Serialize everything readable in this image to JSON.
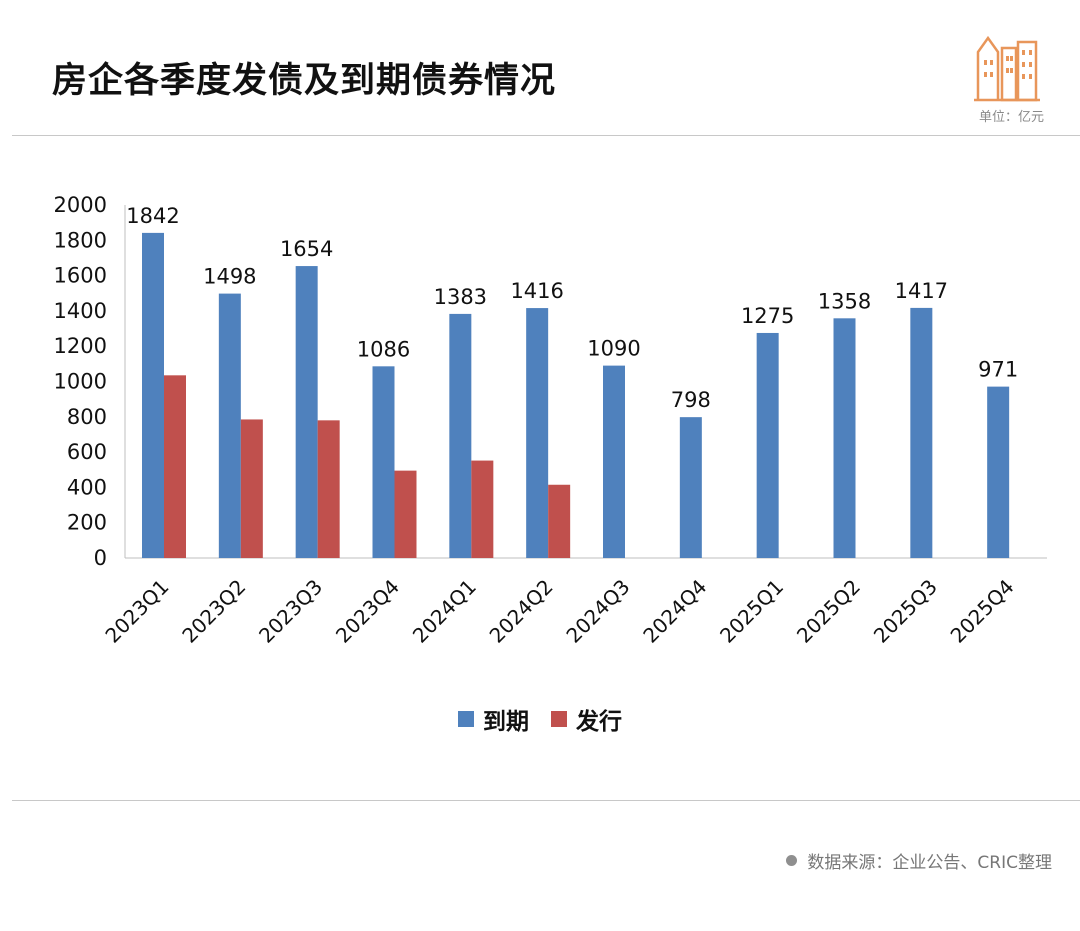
{
  "header": {
    "title": "房企各季度发债及到期债券情况",
    "unit": "单位：亿元"
  },
  "footer": {
    "source": "数据来源：企业公告、CRIC整理"
  },
  "colors": {
    "maturity": "#4f81bd",
    "issuance": "#c0504d",
    "logo": "#e8965a"
  },
  "chart_data": {
    "type": "bar",
    "categories": [
      "2023Q1",
      "2023Q2",
      "2023Q3",
      "2023Q4",
      "2024Q1",
      "2024Q2",
      "2024Q3",
      "2024Q4",
      "2025Q1",
      "2025Q2",
      "2025Q3",
      "2025Q4"
    ],
    "series": [
      {
        "name": "到期",
        "values": [
          1842,
          1498,
          1654,
          1086,
          1383,
          1416,
          1090,
          798,
          1275,
          1358,
          1417,
          971
        ],
        "labels_shown": true
      },
      {
        "name": "发行",
        "values": [
          1035,
          785,
          780,
          495,
          552,
          415,
          null,
          null,
          null,
          null,
          null,
          null
        ],
        "labels_shown": false
      }
    ],
    "yticks": [
      0,
      200,
      400,
      600,
      800,
      1000,
      1200,
      1400,
      1600,
      1800,
      2000
    ],
    "ylim": [
      0,
      2000
    ],
    "grid": false,
    "legend_position": "bottom"
  }
}
